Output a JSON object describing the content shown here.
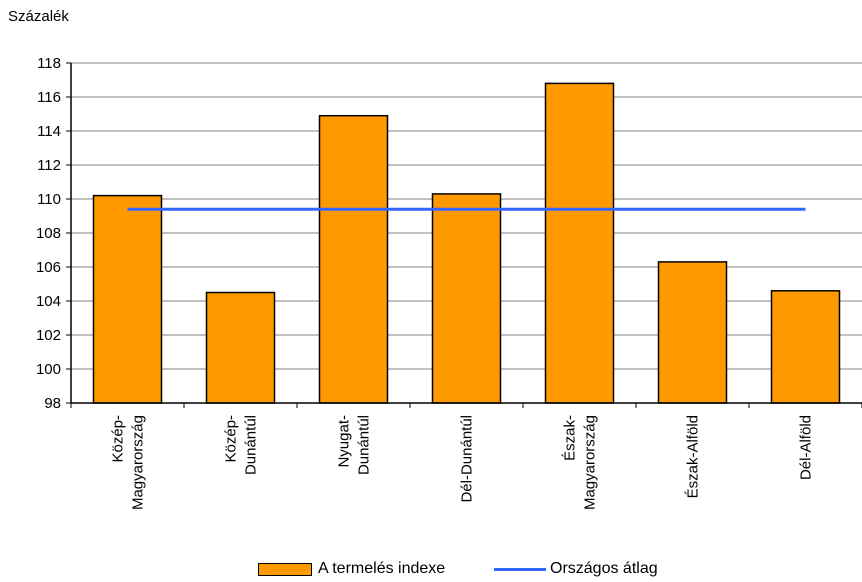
{
  "chart_data": {
    "type": "bar",
    "ylabel": "Százalék",
    "categories": [
      [
        "Közép-",
        "Magyarország"
      ],
      [
        "Közép-",
        "Dunántúl"
      ],
      [
        "Nyugat-",
        "Dunántúl"
      ],
      [
        "Dél-Dunántúl"
      ],
      [
        "Észak-",
        "Magyarország"
      ],
      [
        "Észak-Alföld"
      ],
      [
        "Dél-Alföld"
      ]
    ],
    "series": [
      {
        "name": "A termelés indexe",
        "type": "bar",
        "values": [
          110.2,
          104.5,
          114.9,
          110.3,
          116.8,
          106.3,
          104.6
        ]
      },
      {
        "name": "Országos átlag",
        "type": "line",
        "value": 109.4
      }
    ],
    "ylim": [
      98,
      118
    ],
    "yticks": [
      98,
      100,
      102,
      104,
      106,
      108,
      110,
      112,
      114,
      116,
      118
    ],
    "grid": true,
    "legend_position": "bottom",
    "colors": {
      "bar": "#FF9900",
      "line": "#3366FF",
      "grid": "#808080"
    }
  }
}
